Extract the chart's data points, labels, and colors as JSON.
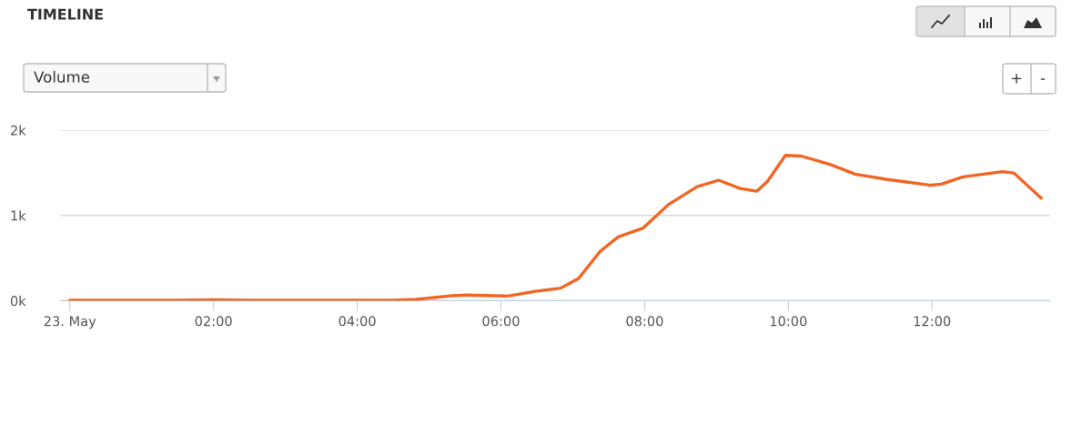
{
  "chart_data": {
    "type": "line",
    "title": "TIMELINE",
    "annotations": [
      "Volume",
      "+",
      "-"
    ],
    "x": [
      0,
      0.5,
      1,
      1.5,
      2,
      2.5,
      3,
      3.5,
      4,
      4.5,
      4.82,
      5.32,
      5.51,
      6.06,
      6.13,
      6.48,
      6.83,
      7.08,
      7.38,
      7.63,
      7.98,
      8.33,
      8.73,
      9.03,
      9.33,
      9.56,
      9.71,
      9.96,
      10.18,
      10.58,
      10.93,
      11.38,
      11.98,
      12.13,
      12.43,
      12.98,
      13.14,
      13.52
    ],
    "series": [
      {
        "color": "#f26522",
        "values": [
          5,
          5,
          5,
          6,
          10,
          6,
          5,
          5,
          5,
          5,
          15,
          58,
          66,
          55,
          59,
          109,
          147,
          261,
          578,
          747,
          852,
          1126,
          1337,
          1413,
          1316,
          1283,
          1400,
          1704,
          1696,
          1599,
          1484,
          1421,
          1354,
          1367,
          1451,
          1514,
          1497,
          1203
        ]
      }
    ],
    "xlim": [
      -0.13,
      13.64
    ],
    "xticks": [
      {
        "value": 0,
        "label": "23. May"
      },
      {
        "value": 2,
        "label": "02:00"
      },
      {
        "value": 4,
        "label": "04:00"
      },
      {
        "value": 6,
        "label": "06:00"
      },
      {
        "value": 8,
        "label": "08:00"
      },
      {
        "value": 10,
        "label": "10:00"
      },
      {
        "value": 12,
        "label": "12:00"
      }
    ],
    "ylim": [
      0,
      2000
    ],
    "yticks": [
      {
        "value": 0,
        "label": "0k"
      },
      {
        "value": 1000,
        "label": "1k"
      },
      {
        "value": 2000,
        "label": "2k"
      }
    ],
    "grid": "y",
    "legend": false,
    "marker": "none",
    "line_style": "solid"
  }
}
